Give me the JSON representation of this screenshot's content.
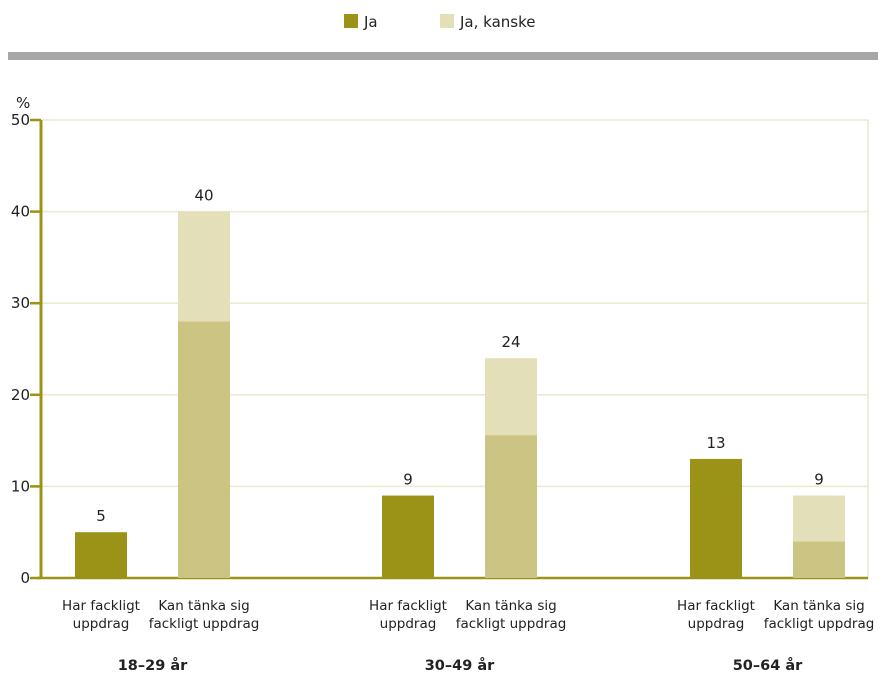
{
  "legend": [
    {
      "name": "Ja",
      "color": "#9b9318"
    },
    {
      "name": "Ja, kanske",
      "color": "#e3dfb9"
    }
  ],
  "chart_data": {
    "type": "bar",
    "stacked": true,
    "unit": "%",
    "ylim": [
      0,
      50
    ],
    "yticks": [
      0,
      10,
      20,
      30,
      40,
      50
    ],
    "grid": true,
    "legend_position": "top-center",
    "groups": [
      {
        "label": "18–29 år",
        "bars": [
          {
            "label": [
              "Har fackligt",
              "uppdrag"
            ],
            "total": 5,
            "segments": [
              {
                "series": "Ja",
                "value": 5,
                "color": "#9b9318"
              }
            ]
          },
          {
            "label": [
              "Kan tänka sig",
              "fackligt uppdrag"
            ],
            "total": 40,
            "segments": [
              {
                "series": "Ja",
                "value": 28,
                "color": "#cbc482"
              },
              {
                "series": "Ja, kanske",
                "value": 12,
                "color": "#e3dfb9"
              }
            ]
          }
        ]
      },
      {
        "label": "30–49 år",
        "bars": [
          {
            "label": [
              "Har fackligt",
              "uppdrag"
            ],
            "total": 9,
            "segments": [
              {
                "series": "Ja",
                "value": 9,
                "color": "#9b9318"
              }
            ]
          },
          {
            "label": [
              "Kan tänka sig",
              "fackligt uppdrag"
            ],
            "total": 24,
            "segments": [
              {
                "series": "Ja",
                "value": 15.6,
                "color": "#cbc482"
              },
              {
                "series": "Ja, kanske",
                "value": 8.4,
                "color": "#e3dfb9"
              }
            ]
          }
        ]
      },
      {
        "label": "50–64 år",
        "bars": [
          {
            "label": [
              "Har fackligt",
              "uppdrag"
            ],
            "total": 13,
            "segments": [
              {
                "series": "Ja",
                "value": 13,
                "color": "#9b9318"
              }
            ]
          },
          {
            "label": [
              "Kan tänka sig",
              "fackligt uppdrag"
            ],
            "total": 9,
            "segments": [
              {
                "series": "Ja",
                "value": 4,
                "color": "#cbc482"
              },
              {
                "series": "Ja, kanske",
                "value": 5,
                "color": "#e3dfb9"
              }
            ]
          }
        ]
      }
    ]
  }
}
